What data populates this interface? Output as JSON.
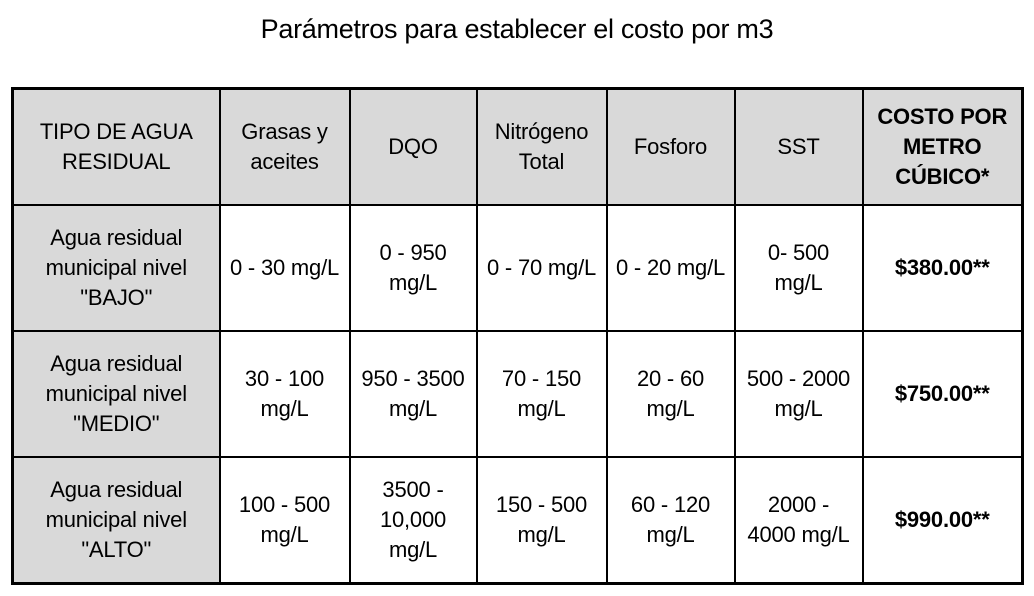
{
  "title": "Parámetros para establecer el costo por m3",
  "table": {
    "headers": [
      [
        "TIPO DE AGUA",
        "RESIDUAL"
      ],
      [
        "Grasas y",
        "aceites"
      ],
      [
        "DQO"
      ],
      [
        "Nitrógeno",
        "Total"
      ],
      [
        "Fosforo"
      ],
      [
        "SST"
      ],
      [
        "COSTO POR",
        "METRO",
        "CÚBICO*"
      ]
    ],
    "rows": [
      {
        "type": [
          "Agua residual",
          "municipal nivel",
          "\"BAJO\""
        ],
        "grasas": [
          "0 - 30 mg/L"
        ],
        "dqo": [
          "0 - 950",
          "mg/L"
        ],
        "nitrogeno": [
          "0 - 70 mg/L"
        ],
        "fosforo": [
          "0 - 20 mg/L"
        ],
        "sst": [
          "0- 500",
          "mg/L"
        ],
        "costo": "$380.00**"
      },
      {
        "type": [
          "Agua residual",
          "municipal nivel",
          "\"MEDIO\""
        ],
        "grasas": [
          "30 - 100",
          "mg/L"
        ],
        "dqo": [
          "950 - 3500",
          "mg/L"
        ],
        "nitrogeno": [
          "70 - 150",
          "mg/L"
        ],
        "fosforo": [
          "20 - 60",
          "mg/L"
        ],
        "sst": [
          "500 - 2000",
          "mg/L"
        ],
        "costo": "$750.00**"
      },
      {
        "type": [
          "Agua residual",
          "municipal nivel",
          "\"ALTO\""
        ],
        "grasas": [
          "100 - 500",
          "mg/L"
        ],
        "dqo": [
          "3500 -",
          "10,000",
          "mg/L"
        ],
        "nitrogeno": [
          "150 - 500",
          "mg/L"
        ],
        "fosforo": [
          "60 - 120",
          "mg/L"
        ],
        "sst": [
          "2000 -",
          "4000 mg/L"
        ],
        "costo": "$990.00**"
      }
    ]
  }
}
